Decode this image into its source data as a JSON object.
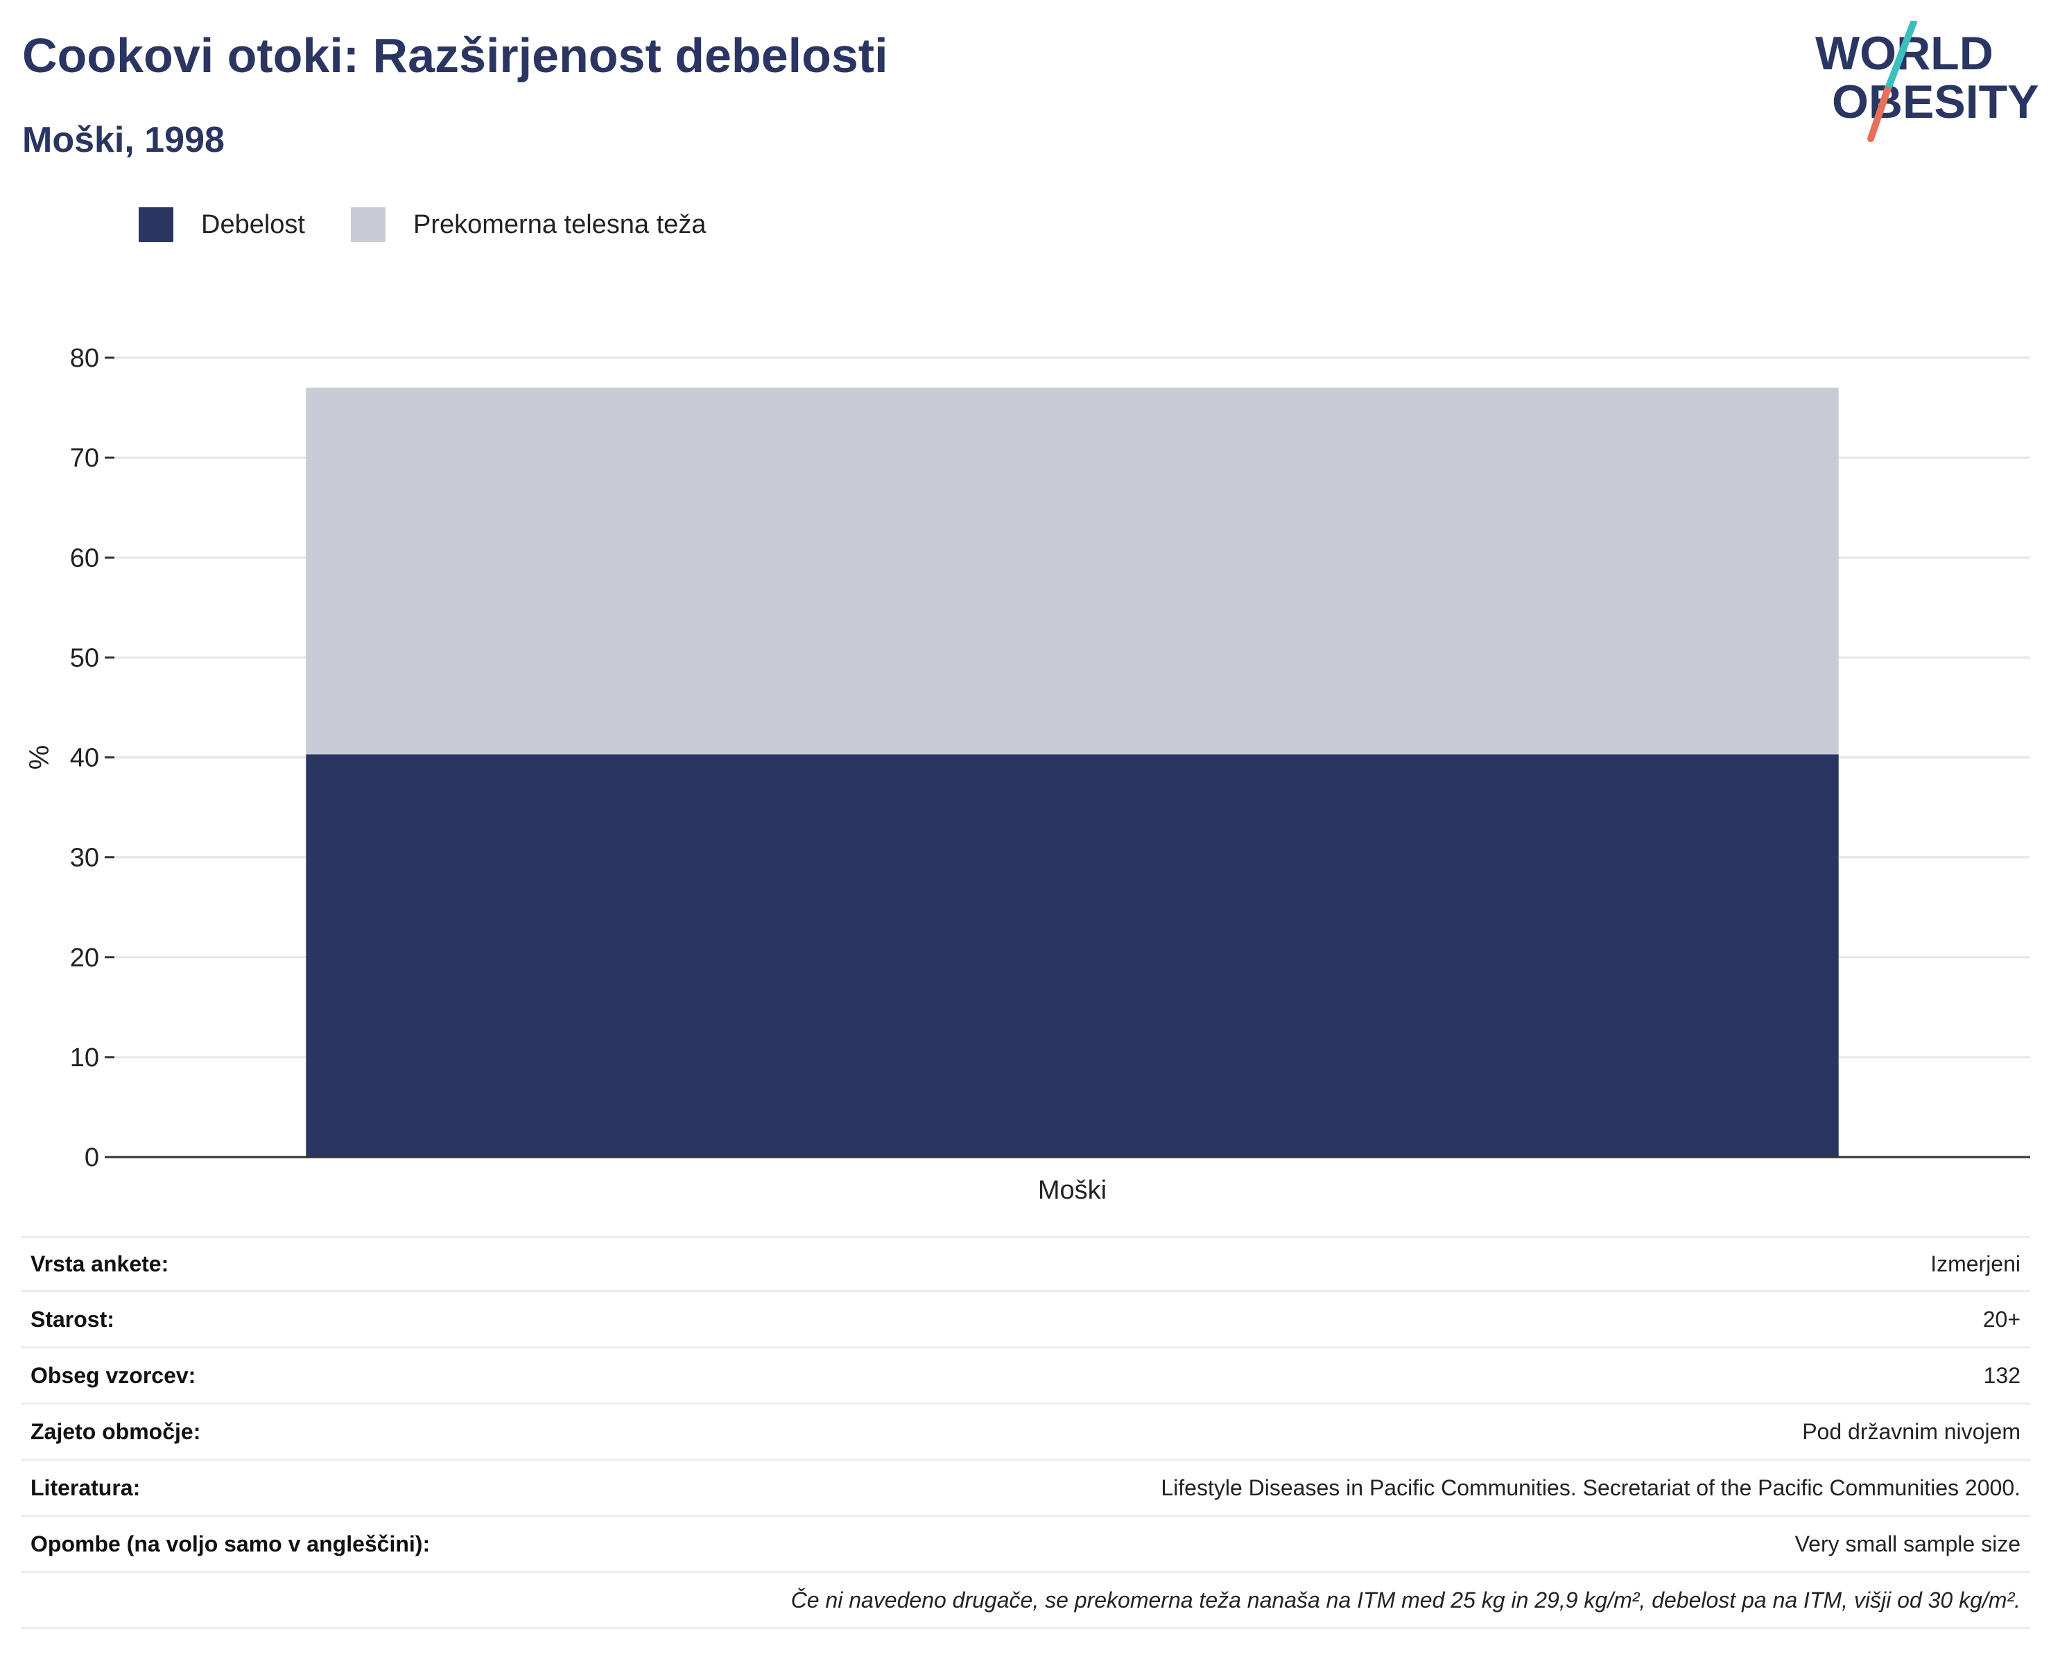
{
  "header": {
    "title": "Cookovi otoki: Razširjenost debelosti",
    "subtitle": "Moški, 1998"
  },
  "logo": {
    "line1": "WORLD",
    "line2": "OBESITY",
    "colors": {
      "text": "#2a3562",
      "slash_top": "#3cbfbf",
      "slash_bottom": "#e8705a"
    }
  },
  "legend": [
    {
      "label": "Debelost",
      "color": "#2a3562"
    },
    {
      "label": "Prekomerna telesna teža",
      "color": "#c9ccd7"
    }
  ],
  "chart_data": {
    "type": "bar",
    "stacked": true,
    "categories": [
      "Moški"
    ],
    "series": [
      {
        "name": "Debelost",
        "values": [
          40.3
        ],
        "color": "#2a3562"
      },
      {
        "name": "Prekomerna telesna teža",
        "values": [
          36.7
        ],
        "color": "#c9ccd7"
      }
    ],
    "xlabel": "",
    "ylabel": "%",
    "ylim": [
      0,
      80
    ],
    "yticks": [
      0,
      10,
      20,
      30,
      40,
      50,
      60,
      70,
      80
    ],
    "grid": true,
    "legend_position": "top-left"
  },
  "info": {
    "rows": [
      {
        "key": "Vrsta ankete:",
        "value": "Izmerjeni"
      },
      {
        "key": "Starost:",
        "value": "20+"
      },
      {
        "key": "Obseg vzorcev:",
        "value": "132"
      },
      {
        "key": "Zajeto območje:",
        "value": "Pod državnim nivojem"
      },
      {
        "key": "Literatura:",
        "value": "Lifestyle Diseases in Pacific Communities. Secretariat of the Pacific Communities 2000."
      },
      {
        "key": "Opombe (na voljo samo v angleščini):",
        "value": "Very small sample size"
      }
    ],
    "note": "Če ni navedeno drugače, se prekomerna teža nanaša na ITM med 25 kg in 29,9 kg/m², debelost pa na ITM, višji od 30 kg/m²."
  }
}
